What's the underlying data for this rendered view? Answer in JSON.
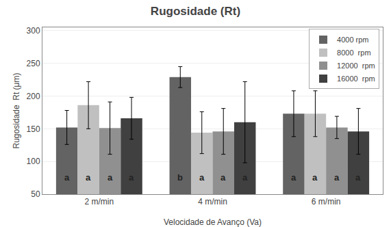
{
  "chart_data": {
    "type": "bar",
    "title": "Rugosidade (Rt)",
    "xlabel": "Velocidade de Avanço (Va)",
    "ylabel": "Rugosidade  Rt (μm)",
    "categories": [
      "2 m/min",
      "4 m/min",
      "6 m/min"
    ],
    "series": [
      {
        "name": "4000 rpm",
        "color": "#636363",
        "values": [
          152,
          229,
          173
        ],
        "errors": [
          26,
          16,
          35
        ],
        "annotations": [
          "a",
          "b",
          "a"
        ]
      },
      {
        "name": "8000  rpm",
        "color": "#c0c0c0",
        "values": [
          186,
          144,
          173
        ],
        "errors": [
          36,
          32,
          35
        ],
        "annotations": [
          "a",
          "a",
          "a"
        ]
      },
      {
        "name": "12000  rpm",
        "color": "#909090",
        "values": [
          151,
          146,
          152
        ],
        "errors": [
          40,
          35,
          17
        ],
        "annotations": [
          "a",
          "a",
          "a"
        ]
      },
      {
        "name": "16000  rpm",
        "color": "#404040",
        "values": [
          166,
          160,
          146
        ],
        "errors": [
          32,
          62,
          35
        ],
        "annotations": [
          "a",
          "a",
          "a"
        ]
      }
    ],
    "ylim": [
      50,
      305
    ],
    "yticks": [
      50,
      100,
      150,
      200,
      250,
      300
    ],
    "grid": true,
    "legend": "upper right"
  }
}
